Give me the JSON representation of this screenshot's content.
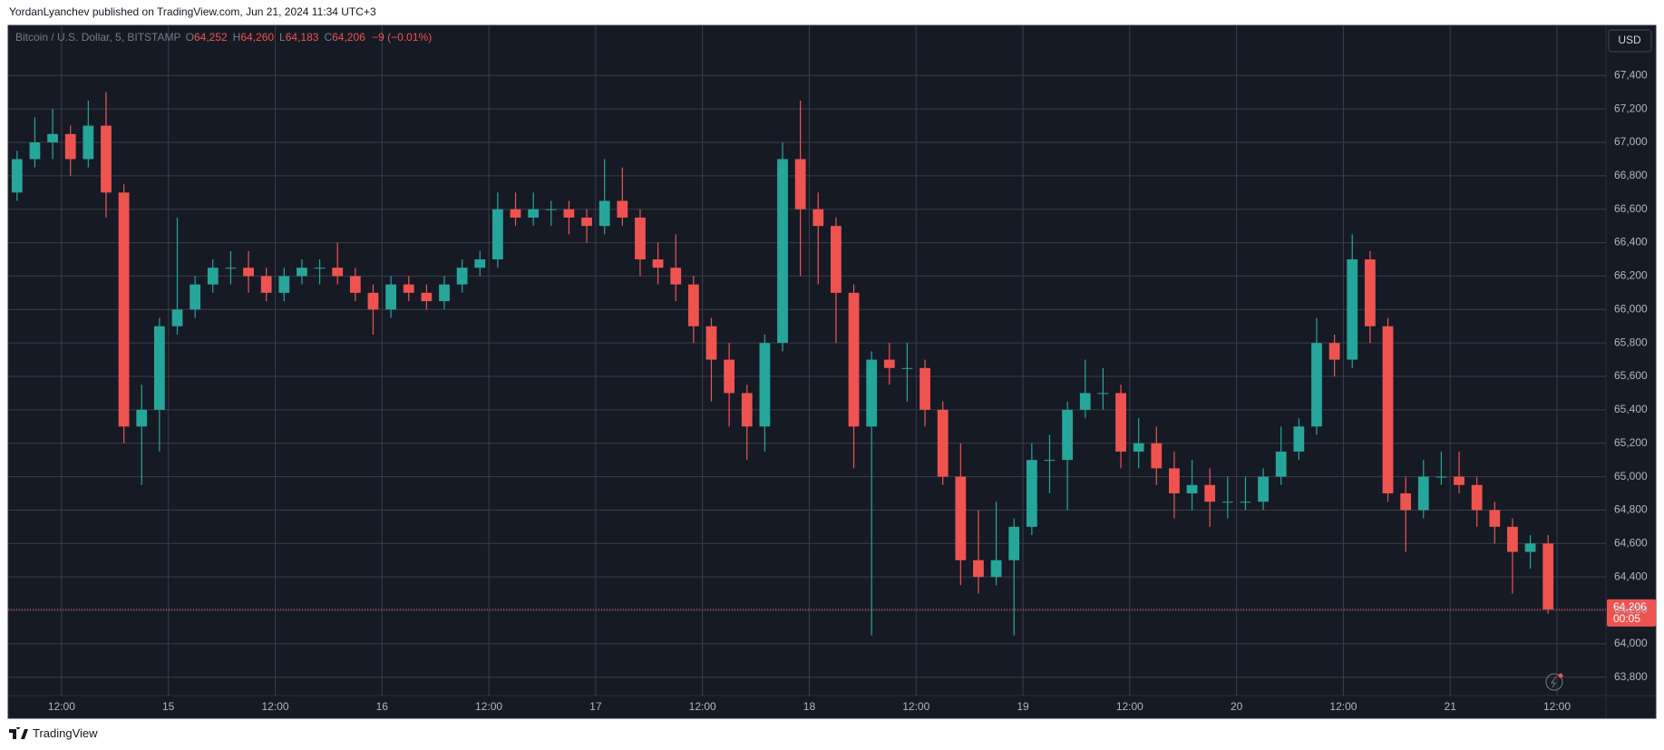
{
  "header": {
    "text": "YordanLyanchev published on TradingView.com, Jun 21, 2024 11:34 UTC+3"
  },
  "chart_data": {
    "type": "candlestick",
    "symbol": "Bitcoin / U.S. Dollar, 5, BITSTAMP",
    "ohlc_legend": [
      {
        "key": "O",
        "value": "64,252"
      },
      {
        "key": "H",
        "value": "64,260"
      },
      {
        "key": "L",
        "value": "64,183"
      },
      {
        "key": "C",
        "value": "64,206"
      }
    ],
    "change": "−9 (−0.01%)",
    "currency": "USD",
    "up_color": "#26a69a",
    "down_color": "#ef5350",
    "grid": true,
    "x": [
      7,
      9,
      11,
      13,
      15,
      17,
      19,
      21,
      23,
      25,
      27,
      29,
      31,
      33,
      35,
      37,
      39,
      41,
      43,
      45,
      47,
      49,
      51,
      53,
      55,
      57,
      59,
      61,
      63,
      65,
      67,
      69,
      71,
      73,
      75,
      77,
      79,
      81,
      83,
      85,
      87,
      89,
      91,
      93,
      95,
      97,
      99,
      101,
      103,
      105,
      107,
      109,
      111,
      113,
      115,
      117,
      119,
      121,
      123,
      125,
      127,
      129,
      131,
      133,
      135,
      137,
      139,
      141,
      143,
      145,
      147,
      149,
      151,
      153,
      155,
      157,
      159,
      161,
      163,
      165,
      167,
      169,
      171,
      173,
      175,
      177,
      179
    ],
    "open": [
      66700,
      66900,
      67000,
      67050,
      66900,
      67100,
      66700,
      65300,
      65400,
      65900,
      66000,
      66150,
      66250,
      66250,
      66200,
      66100,
      66200,
      66250,
      66250,
      66200,
      66100,
      66000,
      66150,
      66100,
      66050,
      66150,
      66250,
      66300,
      66600,
      66550,
      66600,
      66600,
      66550,
      66500,
      66650,
      66550,
      66300,
      66250,
      66150,
      65900,
      65700,
      65500,
      65300,
      65800,
      66900,
      66600,
      66500,
      66100,
      65300,
      65700,
      65650,
      65650,
      65400,
      65000,
      64500,
      64400,
      64500,
      64700,
      65100,
      65100,
      65400,
      65500,
      65500,
      65150,
      65200,
      65050,
      64900,
      64950,
      64850,
      64850,
      64850,
      65000,
      65150,
      65300,
      65800,
      65700,
      66300,
      65900,
      64900,
      64800,
      65000,
      65000,
      64950,
      64800,
      64700,
      64550,
      64600
    ],
    "high": [
      66950,
      67150,
      67200,
      67100,
      67250,
      67300,
      66750,
      65550,
      65950,
      66550,
      66200,
      66300,
      66350,
      66350,
      66250,
      66250,
      66300,
      66300,
      66400,
      66250,
      66150,
      66200,
      66200,
      66150,
      66200,
      66300,
      66350,
      66700,
      66700,
      66700,
      66650,
      66650,
      66600,
      66900,
      66850,
      66600,
      66400,
      66450,
      66200,
      65950,
      65800,
      65550,
      65850,
      67000,
      67250,
      66700,
      66550,
      66150,
      65750,
      65800,
      65800,
      65700,
      65450,
      65200,
      64800,
      64850,
      64750,
      65200,
      65250,
      65450,
      65700,
      65650,
      65550,
      65350,
      65300,
      65150,
      65100,
      65050,
      65000,
      65000,
      65050,
      65300,
      65350,
      65950,
      65850,
      66450,
      66350,
      65950,
      65000,
      65100,
      65150,
      65150,
      65000,
      64850,
      64750,
      64650,
      64650
    ],
    "low": [
      66650,
      66850,
      66900,
      66800,
      66850,
      66550,
      65200,
      64950,
      65150,
      65850,
      65950,
      66100,
      66150,
      66100,
      66050,
      66050,
      66150,
      66150,
      66150,
      66050,
      65850,
      65950,
      66050,
      66000,
      66000,
      66100,
      66200,
      66250,
      66500,
      66500,
      66500,
      66450,
      66400,
      66450,
      66500,
      66200,
      66150,
      66050,
      65800,
      65450,
      65300,
      65100,
      65150,
      65750,
      66200,
      66150,
      65800,
      65050,
      64050,
      65550,
      65450,
      65300,
      64950,
      64350,
      64300,
      64350,
      64050,
      64650,
      64900,
      64800,
      65350,
      65400,
      65050,
      65050,
      64950,
      64750,
      64800,
      64700,
      64750,
      64800,
      64800,
      64950,
      65100,
      65250,
      65600,
      65650,
      65800,
      64850,
      64550,
      64750,
      64950,
      64900,
      64700,
      64600,
      64300,
      64450,
      64180
    ],
    "close": [
      66900,
      67000,
      67050,
      66900,
      67100,
      66700,
      65300,
      65400,
      65900,
      66000,
      66150,
      66250,
      66250,
      66200,
      66100,
      66200,
      66250,
      66250,
      66200,
      66100,
      66000,
      66150,
      66100,
      66050,
      66150,
      66250,
      66300,
      66600,
      66550,
      66600,
      66600,
      66550,
      66500,
      66650,
      66550,
      66300,
      66250,
      66150,
      65900,
      65700,
      65500,
      65300,
      65800,
      66900,
      66600,
      66500,
      66100,
      65300,
      65700,
      65650,
      65650,
      65400,
      65000,
      64500,
      64400,
      64500,
      64700,
      65100,
      65100,
      65400,
      65500,
      65500,
      65150,
      65200,
      65050,
      64900,
      64950,
      64850,
      64850,
      64850,
      65000,
      65150,
      65300,
      65800,
      65700,
      66300,
      65900,
      64900,
      64800,
      65000,
      65000,
      64950,
      64800,
      64700,
      64550,
      64600,
      64206
    ],
    "xlim": [
      6,
      185.5
    ],
    "xticks": [
      {
        "value": 12,
        "label": "12:00"
      },
      {
        "value": 24,
        "label": "15"
      },
      {
        "value": 36,
        "label": "12:00"
      },
      {
        "value": 48,
        "label": "16"
      },
      {
        "value": 60,
        "label": "12:00"
      },
      {
        "value": 72,
        "label": "17"
      },
      {
        "value": 84,
        "label": "12:00"
      },
      {
        "value": 96,
        "label": "18"
      },
      {
        "value": 108,
        "label": "12:00"
      },
      {
        "value": 120,
        "label": "19"
      },
      {
        "value": 132,
        "label": "12:00"
      },
      {
        "value": 144,
        "label": "20"
      },
      {
        "value": 156,
        "label": "12:00"
      },
      {
        "value": 168,
        "label": "21"
      },
      {
        "value": 180,
        "label": "12:00"
      }
    ],
    "ylim": [
      63690,
      67700
    ],
    "yticks": [
      {
        "value": 63800,
        "label": "63,800"
      },
      {
        "value": 64000,
        "label": "64,000"
      },
      {
        "value": 64200,
        "label": "64,200"
      },
      {
        "value": 64400,
        "label": "64,400"
      },
      {
        "value": 64600,
        "label": "64,600"
      },
      {
        "value": 64800,
        "label": "64,800"
      },
      {
        "value": 65000,
        "label": "65,000"
      },
      {
        "value": 65200,
        "label": "65,200"
      },
      {
        "value": 65400,
        "label": "65,400"
      },
      {
        "value": 65600,
        "label": "65,600"
      },
      {
        "value": 65800,
        "label": "65,800"
      },
      {
        "value": 66000,
        "label": "66,000"
      },
      {
        "value": 66200,
        "label": "66,200"
      },
      {
        "value": 66400,
        "label": "66,400"
      },
      {
        "value": 66600,
        "label": "66,600"
      },
      {
        "value": 66800,
        "label": "66,800"
      },
      {
        "value": 67000,
        "label": "67,000"
      },
      {
        "value": 67200,
        "label": "67,200"
      },
      {
        "value": 67400,
        "label": "67,400"
      }
    ],
    "last_price": {
      "value": 64206,
      "label": "64,206",
      "countdown": "00:05"
    }
  },
  "footer": {
    "brand": "TradingView"
  }
}
